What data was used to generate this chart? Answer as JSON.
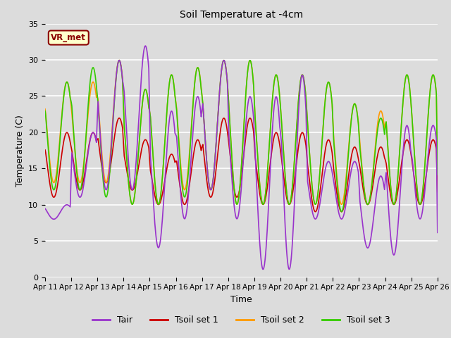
{
  "title": "Soil Temperature at -4cm",
  "xlabel": "Time",
  "ylabel": "Temperature (C)",
  "ylim": [
    0,
    35
  ],
  "background_color": "#dcdcdc",
  "plot_bg_color": "#dcdcdc",
  "grid_color": "#ffffff",
  "annotation_text": "VR_met",
  "annotation_bg": "#ffffcc",
  "annotation_border": "#8B0000",
  "x_tick_labels": [
    "Apr 11",
    "Apr 12",
    "Apr 13",
    "Apr 14",
    "Apr 15",
    "Apr 16",
    "Apr 17",
    "Apr 18",
    "Apr 19",
    "Apr 20",
    "Apr 21",
    "Apr 22",
    "Apr 23",
    "Apr 24",
    "Apr 25",
    "Apr 26"
  ],
  "series": {
    "Tair": {
      "color": "#9933cc",
      "linewidth": 1.2
    },
    "Tsoil set 1": {
      "color": "#cc0000",
      "linewidth": 1.2
    },
    "Tsoil set 2": {
      "color": "#ff9900",
      "linewidth": 1.2
    },
    "Tsoil set 3": {
      "color": "#33cc00",
      "linewidth": 1.2
    }
  }
}
